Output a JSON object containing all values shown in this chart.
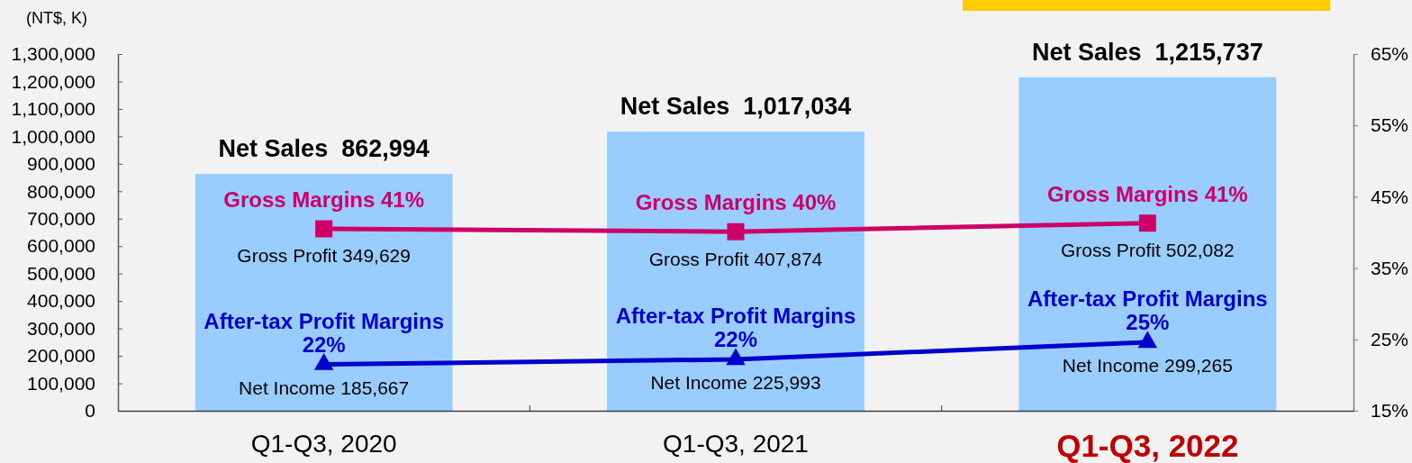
{
  "chart_data": {
    "type": "bar",
    "ylabel": "(NT$, K)",
    "categories": [
      "Q1-Q3, 2020",
      "Q1-Q3, 2021",
      "Q1-Q3, 2022"
    ],
    "series": [
      {
        "color": "#99ccff",
        "values": [
          862994,
          1017034,
          1215737
        ],
        "value_labels": [
          "Net Sales  862,994",
          "Net Sales  1,017,034",
          "Net Sales  1,215,737"
        ]
      },
      {
        "type": "line",
        "axis": "y2",
        "color": "#cc0066",
        "marker": "square",
        "values": [
          40.5,
          40.1,
          41.3
        ],
        "value_labels": [
          "Gross Margins 41%",
          "Gross Margins 40%",
          "Gross Margins 41%"
        ]
      },
      {
        "type": "line",
        "axis": "y2",
        "color": "#0000cc",
        "marker": "triangle",
        "values": [
          21.5,
          22.2,
          24.6
        ],
        "value_labels": [
          "After-tax Profit Margins 22%",
          "After-tax Profit Margins 22%",
          "After-tax Profit Margins 25%"
        ]
      }
    ],
    "ylim": [
      0,
      1300000
    ],
    "yticks": [
      {
        "value": 0,
        "label": "0"
      },
      {
        "value": 100000,
        "label": "100,000"
      },
      {
        "value": 200000,
        "label": "200,000"
      },
      {
        "value": 300000,
        "label": "300,000"
      },
      {
        "value": 400000,
        "label": "400,000"
      },
      {
        "value": 500000,
        "label": "500,000"
      },
      {
        "value": 600000,
        "label": "600,000"
      },
      {
        "value": 700000,
        "label": "700,000"
      },
      {
        "value": 800000,
        "label": "800,000"
      },
      {
        "value": 900000,
        "label": "900,000"
      },
      {
        "value": 1000000,
        "label": "1,000,000"
      },
      {
        "value": 1100000,
        "label": "1,100,000"
      },
      {
        "value": 1200000,
        "label": "1,200,000"
      },
      {
        "value": 1300000,
        "label": "1,300,000"
      }
    ],
    "y2lim": [
      15,
      65
    ],
    "y2ticks": [
      {
        "value": 15,
        "label": "15%"
      },
      {
        "value": 25,
        "label": "25%"
      },
      {
        "value": 35,
        "label": "35%"
      },
      {
        "value": 45,
        "label": "45%"
      },
      {
        "value": 55,
        "label": "55%"
      },
      {
        "value": 65,
        "label": "65%"
      }
    ],
    "annotations": [
      "Gross Profit 349,629",
      "Gross Profit 407,874",
      "Gross Profit 502,082",
      "Net Income 185,667",
      "Net Income 225,993",
      "Net Income 299,265"
    ]
  }
}
